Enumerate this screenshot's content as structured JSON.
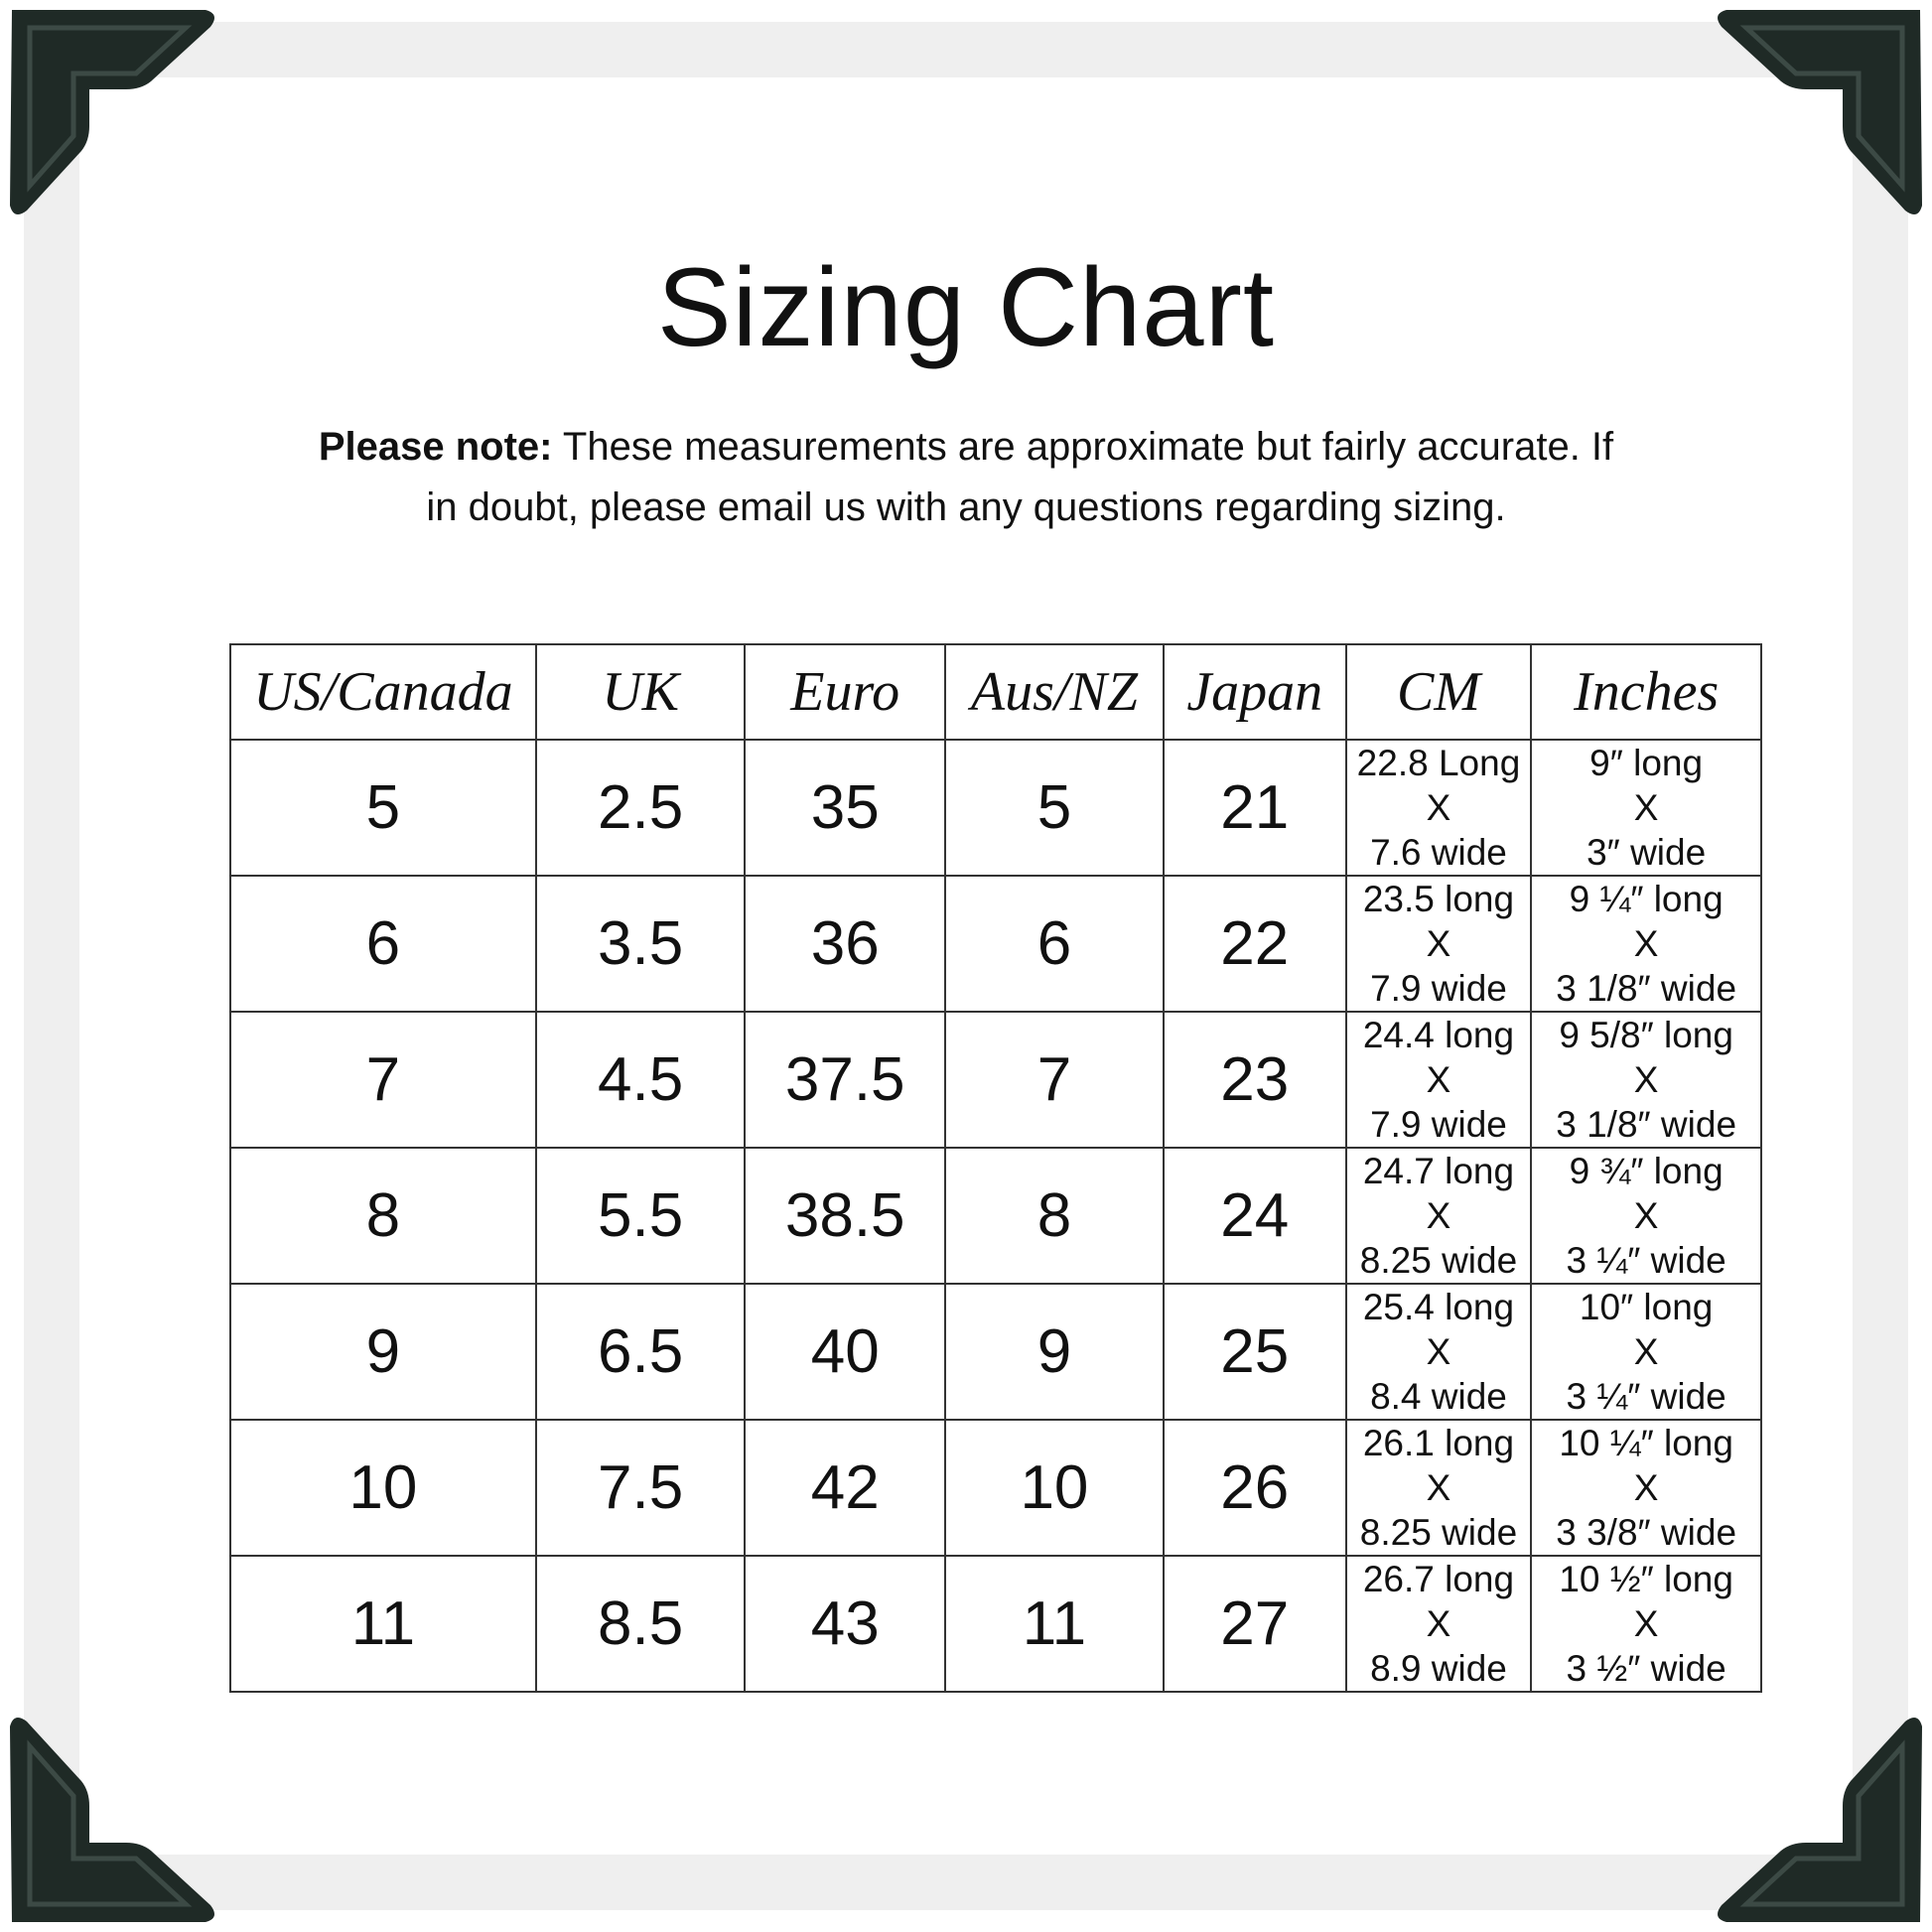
{
  "title": "Sizing Chart",
  "note": {
    "bold": "Please note:",
    "text": " These measurements are approximate but fairly accurate. If in doubt, please email us with any questions regarding sizing."
  },
  "colors": {
    "corner": "#1f2a26",
    "frame": "#efefef"
  },
  "table": {
    "headers": [
      "US/Canada",
      "UK",
      "Euro",
      "Aus/NZ",
      "Japan",
      "CM",
      "Inches"
    ],
    "rows": [
      {
        "us": "5",
        "uk": "2.5",
        "euro": "35",
        "aus": "5",
        "japan": "21",
        "cm": [
          "22.8 Long",
          "X",
          "7.6 wide"
        ],
        "in": [
          "9″ long",
          "X",
          "3″ wide"
        ]
      },
      {
        "us": "6",
        "uk": "3.5",
        "euro": "36",
        "aus": "6",
        "japan": "22",
        "cm": [
          "23.5 long",
          "X",
          "7.9 wide"
        ],
        "in": [
          "9 ¼″ long",
          "X",
          "3 1/8″ wide"
        ]
      },
      {
        "us": "7",
        "uk": "4.5",
        "euro": "37.5",
        "aus": "7",
        "japan": "23",
        "cm": [
          "24.4 long",
          "X",
          "7.9 wide"
        ],
        "in": [
          "9 5/8″ long",
          "X",
          "3 1/8″ wide"
        ]
      },
      {
        "us": "8",
        "uk": "5.5",
        "euro": "38.5",
        "aus": "8",
        "japan": "24",
        "cm": [
          "24.7 long",
          "X",
          "8.25 wide"
        ],
        "in": [
          "9 ¾″ long",
          "X",
          "3 ¼″ wide"
        ]
      },
      {
        "us": "9",
        "uk": "6.5",
        "euro": "40",
        "aus": "9",
        "japan": "25",
        "cm": [
          "25.4 long",
          "X",
          "8.4 wide"
        ],
        "in": [
          "10″ long",
          "X",
          "3 ¼″ wide"
        ]
      },
      {
        "us": "10",
        "uk": "7.5",
        "euro": "42",
        "aus": "10",
        "japan": "26",
        "cm": [
          "26.1 long",
          "X",
          "8.25 wide"
        ],
        "in": [
          "10 ¼″ long",
          "X",
          "3 3/8″ wide"
        ]
      },
      {
        "us": "11",
        "uk": "8.5",
        "euro": "43",
        "aus": "11",
        "japan": "27",
        "cm": [
          "26.7 long",
          "X",
          "8.9 wide"
        ],
        "in": [
          "10 ½″ long",
          "X",
          "3 ½″ wide"
        ]
      }
    ]
  }
}
